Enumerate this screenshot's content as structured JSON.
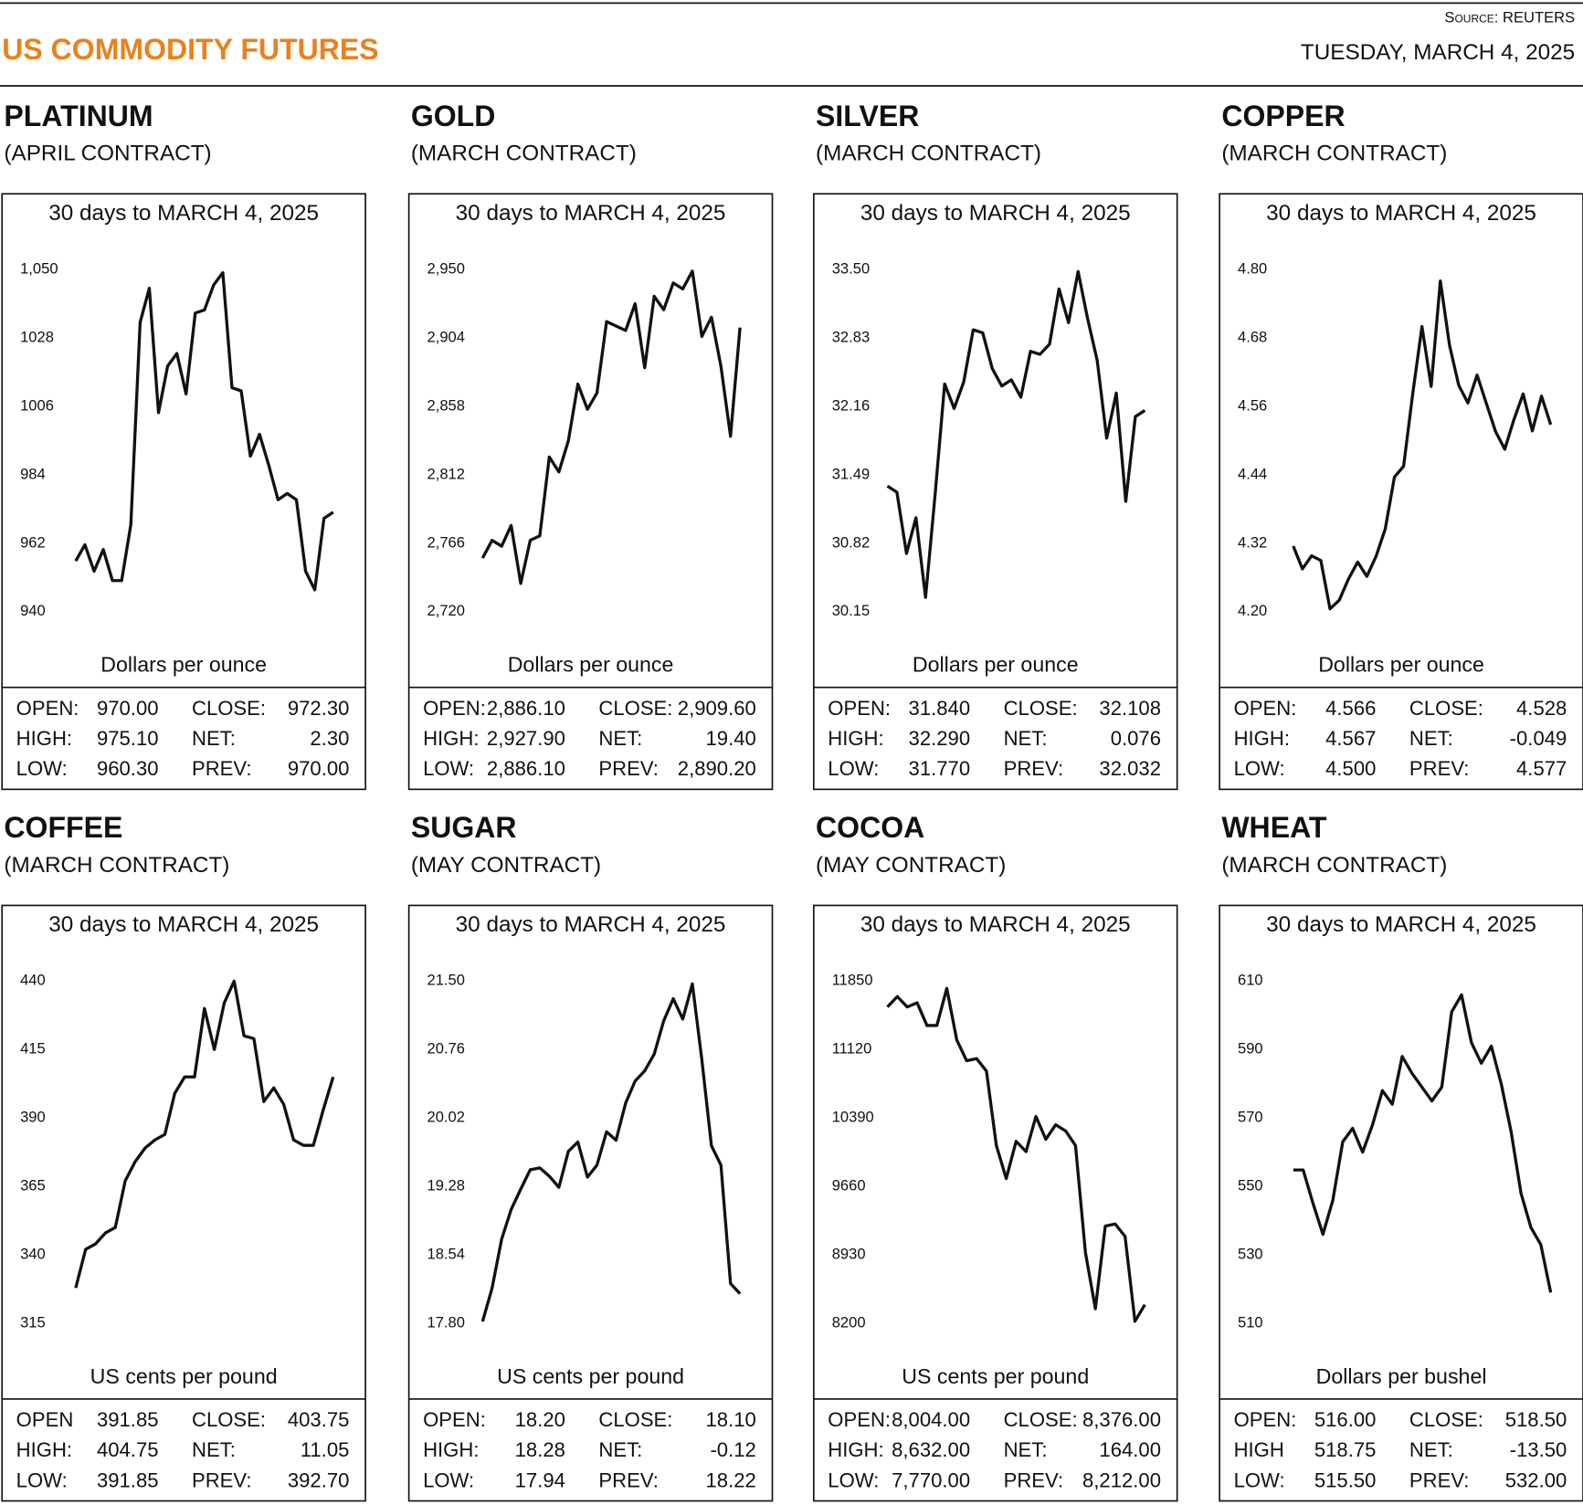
{
  "header": {
    "source": "Source: REUTERS",
    "title": "US COMMODITY FUTURES",
    "date": "TUESDAY, MARCH 4, 2025"
  },
  "chart_data": [
    {
      "type": "line",
      "name": "PLATINUM",
      "contract": "(APRIL CONTRACT)",
      "title": "30 days to MARCH 4, 2025",
      "y_label": "Dollars per ounce",
      "color": "#111111",
      "values": [
        956.3,
        961.5,
        953,
        960,
        950,
        950,
        968,
        1033,
        1044,
        1004,
        1019,
        1023,
        1010,
        1036,
        1037,
        1045,
        1049,
        1012,
        1011,
        990,
        997,
        987,
        976,
        978,
        976,
        953,
        947,
        970,
        972
      ],
      "ylim": [
        940,
        1050
      ],
      "yticks": [
        940,
        962,
        984,
        1006,
        1028,
        {
          "value": 1050,
          "label": "1,050"
        }
      ],
      "stats": [
        [
          "OPEN:",
          "970.00",
          "CLOSE:",
          "972.30"
        ],
        [
          "HIGH:",
          "975.10",
          "NET:",
          "2.30"
        ],
        [
          "LOW:",
          "960.30",
          "PREV:",
          "970.00"
        ]
      ]
    },
    {
      "type": "line",
      "name": "GOLD",
      "contract": "(MARCH CONTRACT)",
      "title": "30 days to MARCH 4, 2025",
      "y_label": "Dollars per ounce",
      "color": "#111111",
      "values": [
        2756,
        2768,
        2764,
        2778,
        2739,
        2768,
        2771,
        2824,
        2814,
        2835,
        2873,
        2856,
        2867,
        2915,
        2912,
        2909,
        2927,
        2884,
        2932,
        2923,
        2941,
        2937,
        2949,
        2905,
        2918,
        2885,
        2838,
        2911
      ],
      "ylim": [
        2720,
        2950
      ],
      "yticks": [
        {
          "value": 2720,
          "label": "2,720"
        },
        {
          "value": 2766,
          "label": "2,766"
        },
        {
          "value": 2812,
          "label": "2,812"
        },
        {
          "value": 2858,
          "label": "2,858"
        },
        {
          "value": 2904,
          "label": "2,904"
        },
        {
          "value": 2950,
          "label": "2,950"
        }
      ],
      "stats": [
        [
          "OPEN:",
          "2,886.10",
          "CLOSE:",
          "2,909.60"
        ],
        [
          "HIGH:",
          "2,927.90",
          "NET:",
          "19.40"
        ],
        [
          "LOW:",
          "2,886.10",
          "PREV:",
          "2,890.20"
        ]
      ]
    },
    {
      "type": "line",
      "name": "SILVER",
      "contract": "(MARCH CONTRACT)",
      "title": "30 days to MARCH 4, 2025",
      "y_label": "Dollars per ounce",
      "color": "#111111",
      "values": [
        31.38,
        31.32,
        30.72,
        31.07,
        30.29,
        31.29,
        32.38,
        32.14,
        32.4,
        32.91,
        32.88,
        32.53,
        32.36,
        32.42,
        32.25,
        32.7,
        32.67,
        32.77,
        33.31,
        32.98,
        33.48,
        33.02,
        32.61,
        31.85,
        32.29,
        31.23,
        32.06,
        32.12
      ],
      "ylim": [
        30.15,
        33.5
      ],
      "yticks": [
        30.15,
        30.82,
        31.49,
        32.16,
        32.83,
        {
          "value": 33.5,
          "label": "33.50"
        }
      ],
      "stats": [
        [
          "OPEN:",
          "31.840",
          "CLOSE:",
          "32.108"
        ],
        [
          "HIGH:",
          "32.290",
          "NET:",
          "0.076"
        ],
        [
          "LOW:",
          "31.770",
          "PREV:",
          "32.032"
        ]
      ]
    },
    {
      "type": "line",
      "name": "COPPER",
      "contract": "(MARCH CONTRACT)",
      "title": "30 days to MARCH 4, 2025",
      "y_label": "Dollars per ounce",
      "color": "#111111",
      "values": [
        4.315,
        4.275,
        4.298,
        4.29,
        4.205,
        4.22,
        4.257,
        4.287,
        4.262,
        4.297,
        4.345,
        4.436,
        4.455,
        4.583,
        4.7,
        4.595,
        4.78,
        4.667,
        4.597,
        4.566,
        4.615,
        4.565,
        4.516,
        4.485,
        4.537,
        4.582,
        4.517,
        4.578,
        4.528
      ],
      "ylim": [
        4.2,
        4.8
      ],
      "yticks": [
        {
          "value": 4.2,
          "label": "4.20"
        },
        4.32,
        4.44,
        4.56,
        4.68,
        {
          "value": 4.8,
          "label": "4.80"
        }
      ],
      "stats": [
        [
          "OPEN:",
          "4.566",
          "CLOSE:",
          "4.528"
        ],
        [
          "HIGH:",
          "4.567",
          "NET:",
          "-0.049"
        ],
        [
          "LOW:",
          "4.500",
          "PREV:",
          "4.577"
        ]
      ]
    },
    {
      "type": "line",
      "name": "COFFEE",
      "contract": "(MARCH CONTRACT)",
      "title": "30 days to MARCH 4, 2025",
      "y_label": "US cents per pound",
      "color": "#111111",
      "values": [
        327.9,
        342,
        344,
        348,
        350,
        367,
        374,
        379,
        382,
        384,
        399,
        405,
        405,
        430,
        415,
        432,
        440,
        420,
        419,
        396,
        401,
        395,
        382,
        380,
        380,
        393,
        405
      ],
      "ylim": [
        315,
        440
      ],
      "yticks": [
        315,
        340,
        365,
        390,
        415,
        440
      ],
      "stats": [
        [
          "OPEN",
          "391.85",
          "CLOSE:",
          "403.75"
        ],
        [
          "HIGH:",
          "404.75",
          "NET:",
          "11.05"
        ],
        [
          "LOW:",
          "391.85",
          "PREV:",
          "392.70"
        ]
      ]
    },
    {
      "type": "line",
      "name": "SUGAR",
      "contract": "(MAY CONTRACT)",
      "title": "30 days to MARCH 4, 2025",
      "y_label": "US cents per pound",
      "color": "#111111",
      "values": [
        17.82,
        18.18,
        18.71,
        19.03,
        19.25,
        19.46,
        19.48,
        19.39,
        19.27,
        19.66,
        19.76,
        19.38,
        19.51,
        19.87,
        19.78,
        20.18,
        20.42,
        20.53,
        20.71,
        21.07,
        21.31,
        21.09,
        21.47,
        20.65,
        19.72,
        19.51,
        18.23,
        18.12
      ],
      "ylim": [
        17.8,
        21.5
      ],
      "yticks": [
        {
          "value": 17.8,
          "label": "17.80"
        },
        18.54,
        19.28,
        20.02,
        20.76,
        {
          "value": 21.5,
          "label": "21.50"
        }
      ],
      "stats": [
        [
          "OPEN:",
          "18.20",
          "CLOSE:",
          "18.10"
        ],
        [
          "HIGH:",
          "18.28",
          "NET:",
          "-0.12"
        ],
        [
          "LOW:",
          "17.94",
          "PREV:",
          "18.22"
        ]
      ]
    },
    {
      "type": "line",
      "name": "COCOA",
      "contract": "(MAY CONTRACT)",
      "title": "30 days to MARCH 4, 2025",
      "y_label": "US cents per pound",
      "color": "#111111",
      "values": [
        11574,
        11685,
        11574,
        11618,
        11376,
        11376,
        11773,
        11222,
        11001,
        11023,
        10891,
        10097,
        9744,
        10141,
        10031,
        10406,
        10163,
        10318,
        10252,
        10097,
        8950,
        8355,
        9237,
        9259,
        9127,
        8222,
        8398
      ],
      "ylim": [
        8200,
        11850
      ],
      "yticks": [
        8200,
        8930,
        9660,
        10390,
        11120,
        11850
      ],
      "stats": [
        [
          "OPEN:",
          "8,004.00",
          "CLOSE:",
          "8,376.00"
        ],
        [
          "HIGH:",
          "8,632.00",
          "NET:",
          "164.00"
        ],
        [
          "LOW:",
          "7,770.00",
          "PREV:",
          "8,212.00"
        ]
      ]
    },
    {
      "type": "line",
      "name": "WHEAT",
      "contract": "(MARCH CONTRACT)",
      "title": "30 days to MARCH 4, 2025",
      "y_label": "Dollars per bushel",
      "color": "#111111",
      "values": [
        554.8,
        554.8,
        545,
        536,
        546,
        563,
        567,
        560,
        568,
        578,
        574,
        588,
        583,
        579,
        575,
        579,
        601,
        606,
        592,
        586,
        591,
        580,
        566,
        548,
        538,
        533,
        519
      ],
      "ylim": [
        510,
        610
      ],
      "yticks": [
        510,
        530,
        550,
        570,
        590,
        610
      ],
      "stats": [
        [
          "OPEN:",
          "516.00",
          "CLOSE:",
          "518.50"
        ],
        [
          "HIGH",
          "518.75",
          "NET:",
          "-13.50"
        ],
        [
          "LOW:",
          "515.50",
          "PREV:",
          "532.00"
        ]
      ]
    }
  ]
}
